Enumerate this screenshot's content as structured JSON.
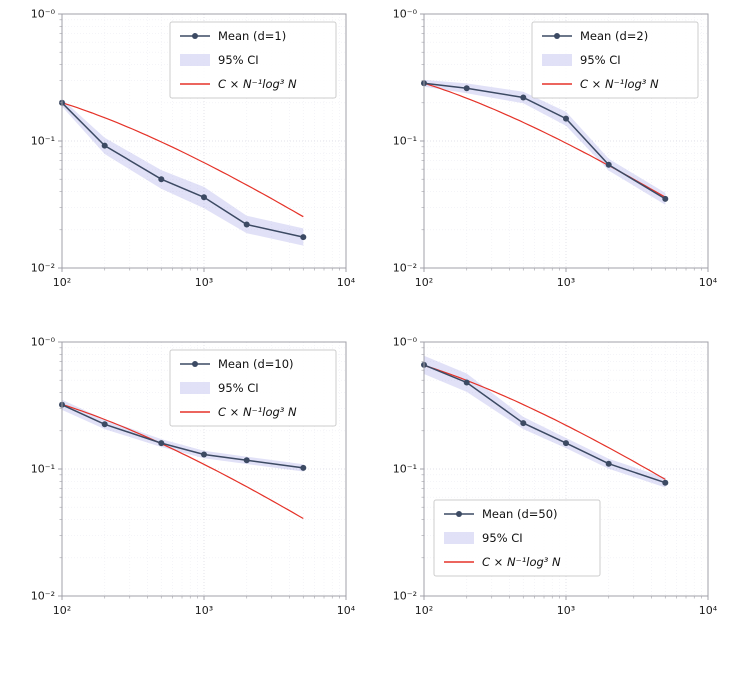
{
  "colors": {
    "mean_line": "#3c4a63",
    "ci_fill": "#a9a9e8",
    "ci_opacity": 0.35,
    "ref_line": "#e53228",
    "grid_minor": "#ededf3",
    "grid_major": "#d8d8e2",
    "spine": "#a0a0a8",
    "text": "#1a1a1a",
    "legend_border": "#cccccc"
  },
  "chart_data": [
    {
      "id": "d1",
      "type": "line",
      "xscale": "log",
      "yscale": "log",
      "xlim": [
        100,
        10000
      ],
      "ylim": [
        0.01,
        1
      ],
      "x": [
        100,
        200,
        500,
        1000,
        2000,
        5000
      ],
      "mean": {
        "label": "Mean (d=1)",
        "values": [
          0.2,
          0.092,
          0.05,
          0.036,
          0.022,
          0.0175
        ]
      },
      "ci": {
        "label": "95% CI",
        "lower": [
          0.187,
          0.079,
          0.042,
          0.0295,
          0.0188,
          0.015
        ],
        "upper": [
          0.214,
          0.106,
          0.059,
          0.0435,
          0.0258,
          0.0205
        ]
      },
      "ref": {
        "label": "C × N⁻¹log³ N",
        "C": 0.205
      },
      "legend": "upper-right",
      "xticks": {
        "values": [
          100,
          1000,
          10000
        ],
        "labels": [
          "10²",
          "10³",
          "10⁴"
        ]
      },
      "yticks": {
        "values": [
          1,
          0.1,
          0.01
        ],
        "labels": [
          "10⁻⁰",
          "10⁻¹",
          "10⁻²"
        ]
      }
    },
    {
      "id": "d2",
      "type": "line",
      "xscale": "log",
      "yscale": "log",
      "xlim": [
        100,
        10000
      ],
      "ylim": [
        0.01,
        1
      ],
      "x": [
        100,
        200,
        500,
        1000,
        2000,
        5000
      ],
      "mean": {
        "label": "Mean (d=2)",
        "values": [
          0.285,
          0.26,
          0.22,
          0.15,
          0.065,
          0.035
        ]
      },
      "ci": {
        "label": "95% CI",
        "lower": [
          0.268,
          0.238,
          0.198,
          0.132,
          0.0585,
          0.0315
        ],
        "upper": [
          0.303,
          0.284,
          0.244,
          0.17,
          0.0725,
          0.039
        ]
      },
      "ref": {
        "label": "C × N⁻¹log³ N",
        "C": 0.292
      },
      "legend": "upper-right",
      "xticks": {
        "values": [
          100,
          1000,
          10000
        ],
        "labels": [
          "10²",
          "10³",
          "10⁴"
        ]
      },
      "yticks": {
        "values": [
          1,
          0.1,
          0.01
        ],
        "labels": [
          "10⁻⁰",
          "10⁻¹",
          "10⁻²"
        ]
      }
    },
    {
      "id": "d10",
      "type": "line",
      "xscale": "log",
      "yscale": "log",
      "xlim": [
        100,
        10000
      ],
      "ylim": [
        0.01,
        1
      ],
      "x": [
        100,
        200,
        500,
        1000,
        2000,
        5000
      ],
      "mean": {
        "label": "Mean (d=10)",
        "values": [
          0.32,
          0.225,
          0.16,
          0.13,
          0.117,
          0.102
        ]
      },
      "ci": {
        "label": "95% CI",
        "lower": [
          0.292,
          0.206,
          0.149,
          0.1215,
          0.1095,
          0.0955
        ],
        "upper": [
          0.351,
          0.246,
          0.172,
          0.139,
          0.125,
          0.109
        ]
      },
      "ref": {
        "label": "C × N⁻¹log³ N",
        "C": 0.33
      },
      "legend": "upper-right",
      "xticks": {
        "values": [
          100,
          1000,
          10000
        ],
        "labels": [
          "10²",
          "10³",
          "10⁴"
        ]
      },
      "yticks": {
        "values": [
          1,
          0.1,
          0.01
        ],
        "labels": [
          "10⁻⁰",
          "10⁻¹",
          "10⁻²"
        ]
      }
    },
    {
      "id": "d50",
      "type": "line",
      "xscale": "log",
      "yscale": "log",
      "xlim": [
        100,
        10000
      ],
      "ylim": [
        0.01,
        1
      ],
      "x": [
        100,
        200,
        500,
        1000,
        2000,
        5000
      ],
      "mean": {
        "label": "Mean (d=50)",
        "values": [
          0.66,
          0.48,
          0.23,
          0.16,
          0.11,
          0.078
        ]
      },
      "ci": {
        "label": "95% CI",
        "lower": [
          0.56,
          0.405,
          0.206,
          0.146,
          0.1005,
          0.0715
        ],
        "upper": [
          0.78,
          0.565,
          0.257,
          0.1755,
          0.1205,
          0.0852
        ]
      },
      "ref": {
        "label": "C × N⁻¹log³ N",
        "C": 0.67
      },
      "legend": "lower-left",
      "xticks": {
        "values": [
          100,
          1000,
          10000
        ],
        "labels": [
          "10²",
          "10³",
          "10⁴"
        ]
      },
      "yticks": {
        "values": [
          1,
          0.1,
          0.01
        ],
        "labels": [
          "10⁻⁰",
          "10⁻¹",
          "10⁻²"
        ]
      }
    }
  ]
}
